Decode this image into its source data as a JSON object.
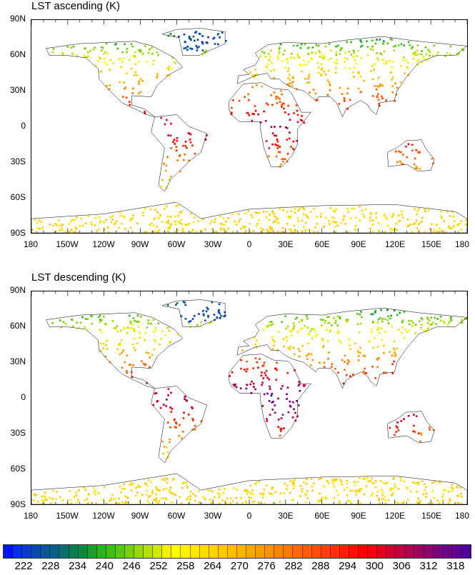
{
  "panels": [
    {
      "title": "LST ascending (K)",
      "mode": "ascending"
    },
    {
      "title": "LST descending (K)",
      "mode": "descending"
    }
  ],
  "lat_ticks": [
    "90N",
    "60N",
    "30N",
    "0",
    "30S",
    "60S",
    "90S"
  ],
  "lon_ticks": [
    "180",
    "150W",
    "120W",
    "90W",
    "60W",
    "30W",
    "0",
    "30E",
    "60E",
    "90E",
    "120E",
    "150E",
    "180"
  ],
  "colorbar": {
    "labels": [
      "222",
      "228",
      "234",
      "240",
      "246",
      "252",
      "258",
      "264",
      "270",
      "276",
      "282",
      "288",
      "294",
      "300",
      "306",
      "312",
      "318"
    ],
    "colors": [
      "#0014ff",
      "#0a2ee8",
      "#0a3ccc",
      "#0a48b4",
      "#0a54a0",
      "#0a6088",
      "#0a6e6c",
      "#0a7c50",
      "#0a8a3c",
      "#14a02a",
      "#28b41e",
      "#3cc014",
      "#5ac80a",
      "#78d00a",
      "#96d80a",
      "#b4e00a",
      "#d2e80a",
      "#f0f00a",
      "#ffff00",
      "#fff000",
      "#ffe600",
      "#ffdc00",
      "#ffd200",
      "#ffc800",
      "#ffbe00",
      "#ffb400",
      "#ffa800",
      "#ff9c00",
      "#ff9000",
      "#ff8400",
      "#ff7800",
      "#ff6a00",
      "#ff5c00",
      "#ff4e00",
      "#ff4000",
      "#ff3000",
      "#ff2000",
      "#ff1000",
      "#ff0000",
      "#f00010",
      "#e00020",
      "#d00030",
      "#c00040",
      "#b00050",
      "#a00060",
      "#900070",
      "#800080",
      "#70008c",
      "#600098",
      "#5000a0"
    ]
  }
}
